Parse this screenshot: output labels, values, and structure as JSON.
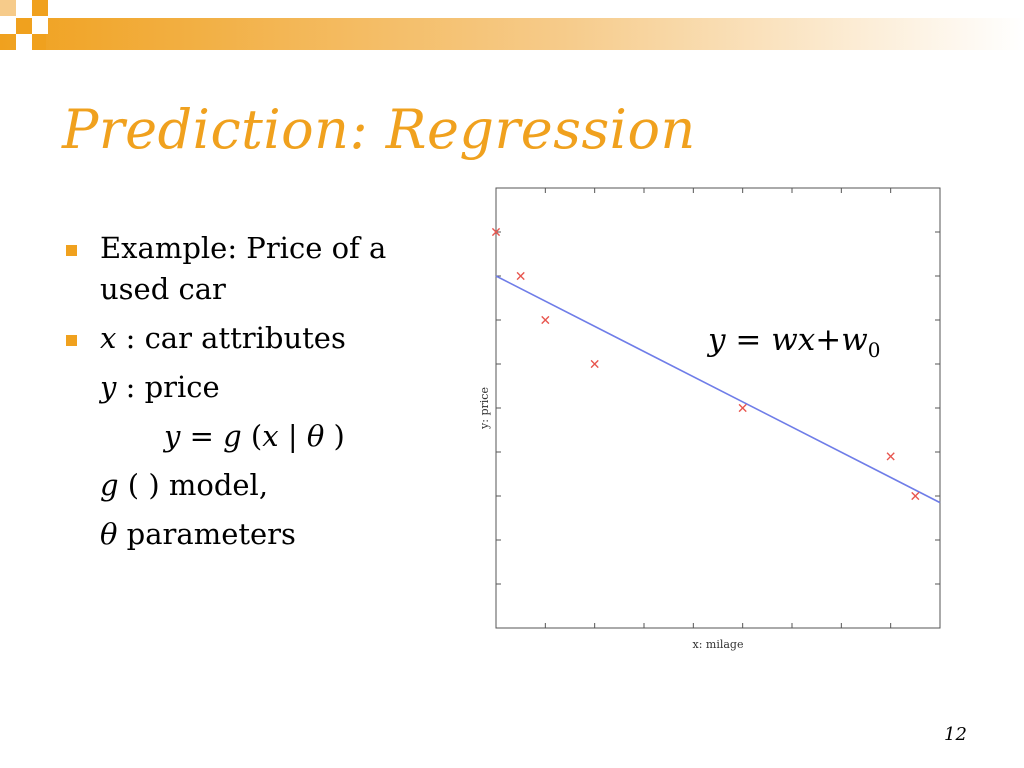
{
  "slide": {
    "title": "Prediction: Regression",
    "page_number": "12",
    "accent_color": "#f0a11e"
  },
  "bullets": {
    "b1_line1": "Example: Price of a",
    "b1_line2": "used car",
    "b2_x": "x",
    "b2_text": " : car attributes",
    "s1_y": "y",
    "s1_text": " : price",
    "s2_y": "y",
    "s2_eq": " = ",
    "s2_g": "g",
    "s2_open": " (",
    "s2_x": "x",
    "s2_bar": " | ",
    "s2_theta": "θ",
    "s2_close": " )",
    "s3_g": "g",
    "s3_text": " ( ) model,",
    "s4_theta": "θ",
    "s4_text": " parameters"
  },
  "equation": {
    "y": "y",
    "eq": " = ",
    "wx": "wx",
    "plus": "+",
    "w": "w",
    "sub": "0"
  },
  "chart_data": {
    "type": "scatter",
    "xlabel": "x: milage",
    "ylabel": "y: price",
    "xlim": [
      0,
      9
    ],
    "ylim": [
      0,
      10
    ],
    "x_ticks": 8,
    "y_ticks": 9,
    "points": [
      {
        "x": 0.0,
        "y": 9.0
      },
      {
        "x": 0.5,
        "y": 8.0
      },
      {
        "x": 1.0,
        "y": 7.0
      },
      {
        "x": 2.0,
        "y": 6.0
      },
      {
        "x": 5.0,
        "y": 5.0
      },
      {
        "x": 8.0,
        "y": 3.9
      },
      {
        "x": 8.5,
        "y": 3.0
      }
    ],
    "fit_line": {
      "x": [
        0,
        9
      ],
      "y": [
        8.0,
        2.85
      ]
    },
    "marker_color": "#e8564f",
    "line_color": "#6f7de8"
  }
}
